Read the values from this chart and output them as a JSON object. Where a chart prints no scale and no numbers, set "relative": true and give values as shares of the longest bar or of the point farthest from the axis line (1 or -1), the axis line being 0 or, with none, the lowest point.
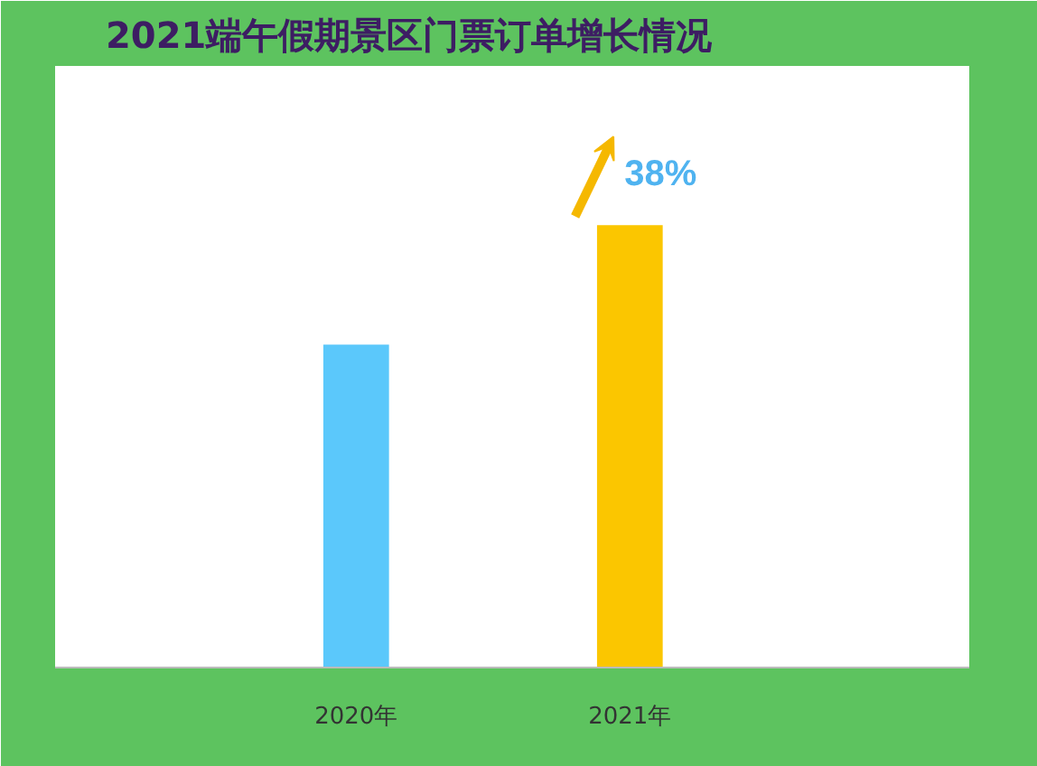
{
  "chart_data": {
    "type": "bar",
    "title": "2021端午假期景区门票订单增长情况",
    "categories": [
      "2020年",
      "2021年"
    ],
    "values": [
      0.73,
      1
    ],
    "colors": [
      "#5bc8fb",
      "#fbc600"
    ],
    "relative": true,
    "annotations": [
      {
        "text": "38%",
        "x": "2021年",
        "y": 1
      }
    ]
  }
}
